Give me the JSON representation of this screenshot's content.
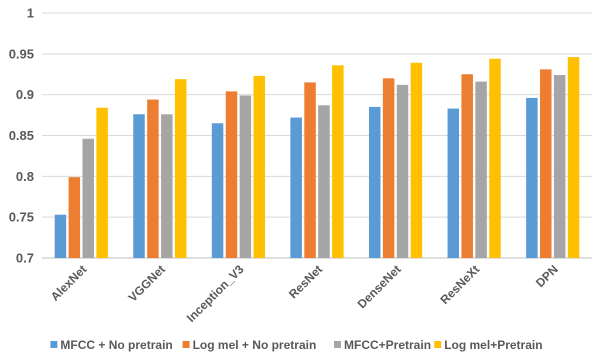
{
  "chart_data": {
    "type": "bar",
    "title": "",
    "xlabel": "",
    "ylabel": "",
    "ylim": [
      0.7,
      1.0
    ],
    "yticks": [
      0.7,
      0.75,
      0.8,
      0.85,
      0.9,
      0.95,
      1
    ],
    "ytick_labels": [
      "0.7",
      "0.75",
      "0.8",
      "0.85",
      "0.9",
      "0.95",
      "1"
    ],
    "categories": [
      "AlexNet",
      "VGGNet",
      "Inception_V3",
      "ResNet",
      "DenseNet",
      "ResNeXt",
      "DPN"
    ],
    "grid": true,
    "legend_position": "bottom",
    "series": [
      {
        "name": "MFCC + No pretrain",
        "color": "#5B9BD5",
        "values": [
          0.753,
          0.876,
          0.865,
          0.872,
          0.885,
          0.883,
          0.896
        ]
      },
      {
        "name": "Log mel + No pretrain",
        "color": "#ED7D31",
        "values": [
          0.799,
          0.894,
          0.904,
          0.915,
          0.92,
          0.925,
          0.931
        ]
      },
      {
        "name": "MFCC+Pretrain",
        "color": "#A5A5A5",
        "values": [
          0.846,
          0.876,
          0.899,
          0.887,
          0.912,
          0.916,
          0.924
        ]
      },
      {
        "name": "Log mel+Pretrain",
        "color": "#FFC000",
        "values": [
          0.884,
          0.919,
          0.923,
          0.936,
          0.939,
          0.944,
          0.946
        ]
      }
    ]
  }
}
